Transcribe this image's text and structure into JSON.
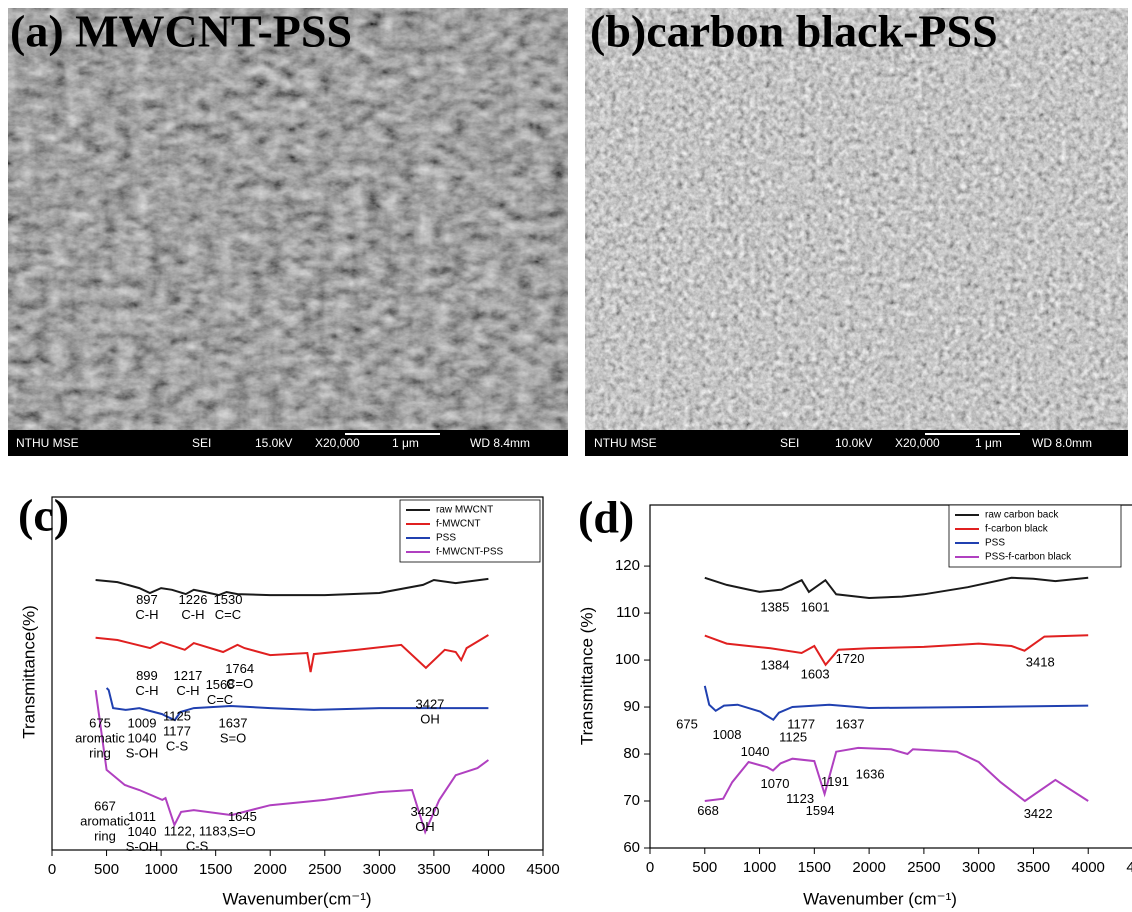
{
  "panels": [
    {
      "label": "(a) MWCNT-PSS",
      "info": [
        "NTHU MSE",
        "SEI",
        "15.0kV",
        "X20,000",
        "1 μm",
        "WD 8.4mm"
      ]
    },
    {
      "label": "(b)carbon black-PSS",
      "info": [
        "NTHU MSE",
        "SEI",
        "10.0kV",
        "X20,000",
        "1 μm",
        "WD 8.0mm"
      ]
    }
  ],
  "chart_data": [
    {
      "type": "line",
      "panel_label": "(c)",
      "x_label": "Wavenumber(cm⁻¹)",
      "y_label": "Transmittance(%)",
      "xlim": [
        0,
        4500
      ],
      "xticks": [
        0,
        500,
        1000,
        1500,
        2000,
        2500,
        3000,
        3500,
        4000,
        4500
      ],
      "ylim": [
        0,
        100
      ],
      "legend": "upper right",
      "series": [
        {
          "name": "raw MWCNT",
          "color": "#1a1a1a",
          "x": [
            400,
            600,
            800,
            897,
            1000,
            1100,
            1226,
            1300,
            1400,
            1530,
            1600,
            1700,
            2000,
            2500,
            3000,
            3400,
            3500,
            3700,
            4000
          ],
          "values": [
            76.5,
            75.9,
            74.2,
            72.8,
            74.2,
            73.7,
            72.5,
            73.7,
            73.1,
            72.2,
            73.1,
            72.5,
            72.2,
            72.2,
            72.8,
            75.1,
            76.5,
            75.6,
            76.8
          ]
        },
        {
          "name": "f-MWCNT",
          "color": "#e02020",
          "x": [
            400,
            600,
            899,
            1000,
            1217,
            1300,
            1568,
            1700,
            1764,
            2000,
            2340,
            2370,
            2400,
            2800,
            3200,
            3427,
            3600,
            3700,
            3750,
            3800,
            4000
          ],
          "values": [
            60.1,
            59.5,
            57.2,
            58.9,
            56.7,
            58.6,
            56.1,
            58.1,
            57.2,
            55.2,
            55.8,
            50.4,
            55.5,
            56.7,
            58.1,
            51.6,
            56.7,
            56.1,
            53.8,
            57.2,
            60.9
          ]
        },
        {
          "name": "PSS",
          "color": "#2040b0",
          "x": [
            500,
            520,
            560,
            675,
            800,
            1009,
            1040,
            1125,
            1177,
            1300,
            1637,
            2000,
            2400,
            3000,
            4000
          ],
          "values": [
            45.9,
            45.3,
            40.2,
            39.7,
            40.2,
            38.5,
            38.0,
            36.8,
            39.1,
            40.2,
            40.8,
            40.2,
            39.7,
            40.2,
            40.2
          ]
        },
        {
          "name": "f-MWCNT-PSS",
          "color": "#b040c0",
          "x": [
            400,
            450,
            500,
            667,
            800,
            1011,
            1040,
            1122,
            1183,
            1300,
            1645,
            2000,
            2500,
            3000,
            3300,
            3420,
            3550,
            3700,
            3900,
            4000
          ],
          "values": [
            45.3,
            34.0,
            22.7,
            18.4,
            17.0,
            14.2,
            14.7,
            7.1,
            10.8,
            11.3,
            9.9,
            12.7,
            14.2,
            16.4,
            17.0,
            5.1,
            14.2,
            21.2,
            23.2,
            25.5
          ]
        }
      ],
      "annotations": [
        {
          "lines": [
            "897",
            "C-H"
          ],
          "x": 870,
          "y": 70.5
        },
        {
          "lines": [
            "1226",
            "C-H"
          ],
          "x": 1292,
          "y": 70.5
        },
        {
          "lines": [
            "1530",
            "C=C"
          ],
          "x": 1613,
          "y": 70.5
        },
        {
          "lines": [
            "899",
            "C-H"
          ],
          "x": 870,
          "y": 49
        },
        {
          "lines": [
            "1217",
            "C-H"
          ],
          "x": 1246,
          "y": 49
        },
        {
          "lines": [
            "1568",
            "C=C"
          ],
          "x": 1540,
          "y": 46.5
        },
        {
          "lines": [
            "1764",
            "C=O"
          ],
          "x": 1720,
          "y": 51
        },
        {
          "lines": [
            "3427",
            "OH"
          ],
          "x": 3464,
          "y": 41
        },
        {
          "lines": [
            "675",
            "aromatic",
            "ring"
          ],
          "x": 440,
          "y": 35.5
        },
        {
          "lines": [
            "1009",
            "1040",
            "S-OH"
          ],
          "x": 825,
          "y": 35.5
        },
        {
          "lines": [
            "1125",
            "1177",
            "C-S"
          ],
          "x": 1146,
          "y": 37.5
        },
        {
          "lines": [
            "1637",
            "S=O"
          ],
          "x": 1659,
          "y": 35.5
        },
        {
          "lines": [
            "667",
            "aromatic",
            "ring"
          ],
          "x": 486,
          "y": 12
        },
        {
          "lines": [
            "1011",
            "1040",
            "S-OH"
          ],
          "x": 825,
          "y": 9
        },
        {
          "lines": [
            "1122, 1183,",
            "C-S"
          ],
          "x": 1330,
          "y": 5
        },
        {
          "lines": [
            "1645",
            "S=O"
          ],
          "x": 1745,
          "y": 9
        },
        {
          "lines": [
            "3420",
            "OH"
          ],
          "x": 3418,
          "y": 10.5
        }
      ]
    },
    {
      "type": "line",
      "panel_label": "(d)",
      "x_label": "Wavenumber (cm⁻¹)",
      "y_label": "Transmittance (%)",
      "xlim": [
        0,
        4500
      ],
      "xticks": [
        0,
        500,
        1000,
        1500,
        2000,
        2500,
        3000,
        3500,
        4000,
        4500
      ],
      "ylim": [
        60,
        133
      ],
      "yticks": [
        60,
        70,
        80,
        90,
        100,
        110,
        120
      ],
      "legend": "upper right",
      "series": [
        {
          "name": "raw carbon back",
          "color": "#1a1a1a",
          "x": [
            500,
            700,
            900,
            1000,
            1200,
            1385,
            1450,
            1601,
            1700,
            2000,
            2300,
            2500,
            2900,
            3300,
            3500,
            3700,
            4000
          ],
          "values": [
            117.5,
            116,
            115,
            114.5,
            115,
            117,
            114.5,
            117,
            114,
            113.2,
            113.5,
            114,
            115.5,
            117.5,
            117.3,
            116.8,
            117.5
          ]
        },
        {
          "name": "f-carbon black",
          "color": "#e02020",
          "x": [
            500,
            700,
            900,
            1100,
            1384,
            1500,
            1603,
            1720,
            2000,
            2500,
            3000,
            3300,
            3418,
            3600,
            4000
          ],
          "values": [
            105.2,
            103.5,
            103,
            102.5,
            101.5,
            103,
            99,
            102.2,
            102.5,
            102.8,
            103.5,
            103,
            102,
            105,
            105.3
          ]
        },
        {
          "name": "PSS",
          "color": "#2040b0",
          "x": [
            500,
            540,
            600,
            675,
            800,
            1008,
            1040,
            1125,
            1177,
            1300,
            1637,
            2000,
            3000,
            4000
          ],
          "values": [
            94.5,
            90.5,
            89.2,
            90.3,
            90.5,
            89,
            88.5,
            87.3,
            88.8,
            90,
            90.5,
            89.8,
            90,
            90.3
          ]
        },
        {
          "name": "PSS-f-carbon black",
          "color": "#b040c0",
          "x": [
            500,
            668,
            750,
            900,
            1070,
            1123,
            1191,
            1300,
            1500,
            1594,
            1700,
            1900,
            2200,
            2350,
            2400,
            2800,
            3000,
            3200,
            3422,
            3700,
            4000
          ],
          "values": [
            70,
            70.5,
            74,
            78.3,
            77.2,
            76.5,
            78,
            79,
            78.5,
            71.5,
            80.5,
            81.3,
            81,
            80,
            81,
            80.5,
            78.3,
            74,
            70,
            74.5,
            70
          ]
        }
      ],
      "annotations": [
        {
          "lines": [
            "1385"
          ],
          "x": 1140,
          "y": 111
        },
        {
          "lines": [
            "1601"
          ],
          "x": 1507,
          "y": 111
        },
        {
          "lines": [
            "1384"
          ],
          "x": 1141,
          "y": 98.6
        },
        {
          "lines": [
            "1603"
          ],
          "x": 1507,
          "y": 96.7
        },
        {
          "lines": [
            "1720"
          ],
          "x": 1826,
          "y": 100
        },
        {
          "lines": [
            "3418"
          ],
          "x": 3562,
          "y": 99.3
        },
        {
          "lines": [
            "675"
          ],
          "x": 338,
          "y": 86.1
        },
        {
          "lines": [
            "1008"
          ],
          "x": 703,
          "y": 83.8
        },
        {
          "lines": [
            "1040"
          ],
          "x": 959,
          "y": 80.2
        },
        {
          "lines": [
            "1125"
          ],
          "x": 1306,
          "y": 83.3
        },
        {
          "lines": [
            "1177"
          ],
          "x": 1380,
          "y": 86.1
        },
        {
          "lines": [
            "1637"
          ],
          "x": 1826,
          "y": 86.1
        },
        {
          "lines": [
            "1070"
          ],
          "x": 1141,
          "y": 73.4
        },
        {
          "lines": [
            "1123"
          ],
          "x": 1370,
          "y": 70.2
        },
        {
          "lines": [
            "1191"
          ],
          "x": 1689,
          "y": 73.8
        },
        {
          "lines": [
            "1636"
          ],
          "x": 2009,
          "y": 75.4
        },
        {
          "lines": [
            "1594"
          ],
          "x": 1553,
          "y": 67.7
        },
        {
          "lines": [
            "668"
          ],
          "x": 530,
          "y": 67.7
        },
        {
          "lines": [
            "3422"
          ],
          "x": 3543,
          "y": 67
        }
      ]
    }
  ]
}
